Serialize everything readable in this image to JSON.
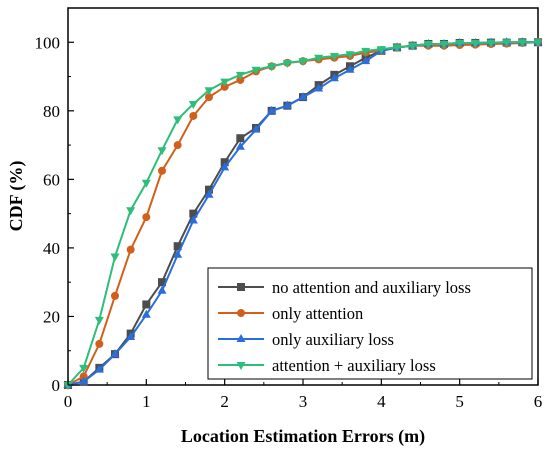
{
  "chart_data": {
    "type": "line",
    "title": "",
    "xlabel": "Location Estimation Errors (m)",
    "ylabel": "CDF (%)",
    "xlim": [
      0,
      6
    ],
    "ylim": [
      0,
      110
    ],
    "xticks": [
      0,
      1,
      2,
      3,
      4,
      5,
      6
    ],
    "yticks": [
      0,
      20,
      40,
      60,
      80,
      100
    ],
    "grid": false,
    "legend_position": "bottom-right",
    "series": [
      {
        "name": "no attention and auxiliary loss",
        "color": "#4d4d4d",
        "marker": "square",
        "x": [
          0.0,
          0.2,
          0.4,
          0.6,
          0.8,
          1.0,
          1.2,
          1.4,
          1.6,
          1.8,
          2.0,
          2.2,
          2.4,
          2.6,
          2.8,
          3.0,
          3.2,
          3.4,
          3.6,
          3.8,
          4.0,
          4.2,
          4.4,
          4.6,
          4.8,
          5.0,
          5.2,
          5.4,
          5.6,
          5.8,
          6.0
        ],
        "y": [
          0,
          1,
          5,
          9,
          15,
          23.5,
          30,
          40.5,
          50,
          57,
          65,
          72,
          75,
          80,
          81.5,
          84,
          87.5,
          90.5,
          93,
          95.5,
          97.5,
          98.5,
          99,
          99.5,
          99.5,
          99.8,
          99.8,
          99.9,
          99.9,
          100,
          100
        ]
      },
      {
        "name": "only attention",
        "color": "#d35f1c",
        "marker": "circle",
        "x": [
          0.0,
          0.2,
          0.4,
          0.6,
          0.8,
          1.0,
          1.2,
          1.4,
          1.6,
          1.8,
          2.0,
          2.2,
          2.4,
          2.6,
          2.8,
          3.0,
          3.2,
          3.4,
          3.6,
          3.8,
          4.0,
          4.2,
          4.4,
          4.6,
          4.8,
          5.0,
          5.2,
          5.4,
          5.6,
          5.8,
          6.0
        ],
        "y": [
          0,
          2.5,
          12,
          26,
          39.5,
          49,
          62.5,
          70,
          78.5,
          84,
          87,
          89,
          91.5,
          93,
          94,
          94.5,
          95,
          95.5,
          96,
          97,
          97.5,
          98.5,
          99,
          99,
          99,
          99.2,
          99.3,
          99.5,
          99.6,
          99.8,
          100
        ]
      },
      {
        "name": "only auxiliary loss",
        "color": "#2a6edb",
        "marker": "triangle-up",
        "x": [
          0.0,
          0.2,
          0.4,
          0.6,
          0.8,
          1.0,
          1.2,
          1.4,
          1.6,
          1.8,
          2.0,
          2.2,
          2.4,
          2.6,
          2.8,
          3.0,
          3.2,
          3.4,
          3.6,
          3.8,
          4.0,
          4.2,
          4.4,
          4.6,
          4.8,
          5.0,
          5.2,
          5.4,
          5.6,
          5.8,
          6.0
        ],
        "y": [
          0,
          1,
          4.5,
          9,
          14,
          20.5,
          27.5,
          38,
          48,
          55.5,
          63.5,
          69.5,
          74.5,
          80,
          81.5,
          84,
          86.5,
          89.5,
          92,
          94.5,
          97.5,
          98.5,
          99,
          99.5,
          99.5,
          99.8,
          99.8,
          99.9,
          100,
          100,
          100
        ]
      },
      {
        "name": "attention + auxiliary loss",
        "color": "#2ebd7a",
        "marker": "triangle-down",
        "x": [
          0.0,
          0.2,
          0.4,
          0.6,
          0.8,
          1.0,
          1.2,
          1.4,
          1.6,
          1.8,
          2.0,
          2.2,
          2.4,
          2.6,
          2.8,
          3.0,
          3.2,
          3.4,
          3.6,
          3.8,
          4.0,
          4.2,
          4.4,
          4.6,
          4.8,
          5.0,
          5.2,
          5.4,
          5.6,
          5.8,
          6.0
        ],
        "y": [
          0,
          5,
          19,
          37.5,
          51,
          59,
          68.5,
          77.5,
          82,
          86,
          88.5,
          90.5,
          92,
          93,
          94,
          94.5,
          95.5,
          96,
          96.5,
          97.5,
          98,
          98.5,
          99,
          99.5,
          99.5,
          99.8,
          99.8,
          99.9,
          100,
          100,
          100
        ]
      }
    ]
  }
}
